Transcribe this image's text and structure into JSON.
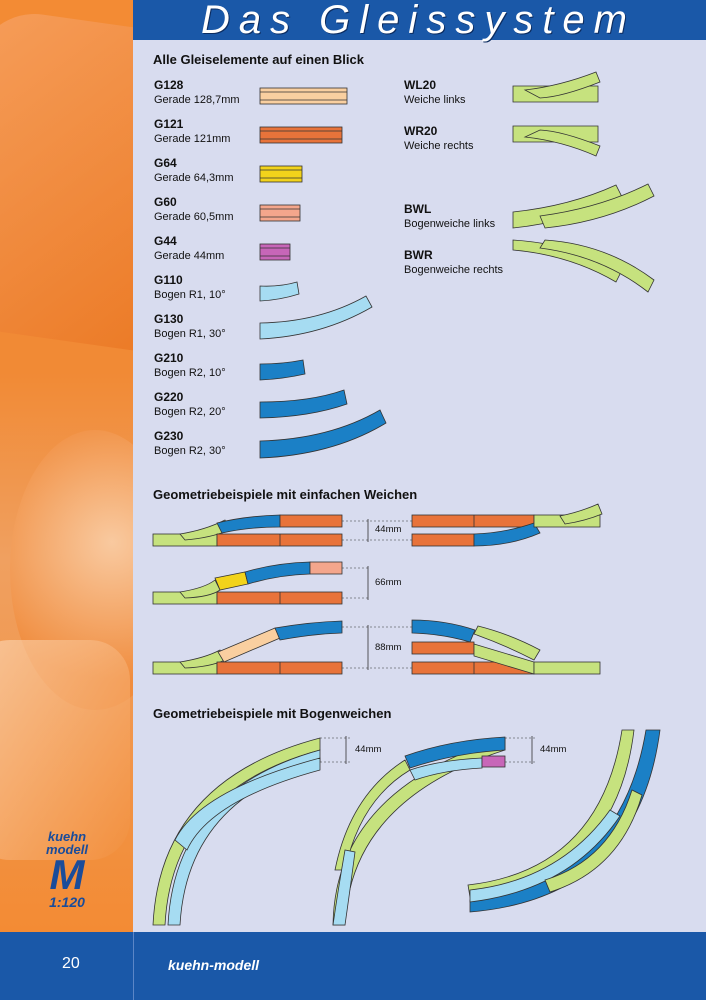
{
  "header": {
    "title": "Das Gleissystem"
  },
  "sections": {
    "overview": "Alle Gleiselemente auf einen Blick",
    "simple": "Geometriebeispiele mit einfachen Weichen",
    "curved": "Geometriebeispiele mit Bogenweichen"
  },
  "left_items": [
    {
      "code": "G128",
      "desc": "Gerade 128,7mm",
      "color": "#f9cfa0"
    },
    {
      "code": "G121",
      "desc": "Gerade 121mm",
      "color": "#e8733a"
    },
    {
      "code": "G64",
      "desc": "Gerade 64,3mm",
      "color": "#f2d31b"
    },
    {
      "code": "G60",
      "desc": "Gerade 60,5mm",
      "color": "#f4a68c"
    },
    {
      "code": "G44",
      "desc": "Gerade 44mm",
      "color": "#c766b8"
    },
    {
      "code": "G110",
      "desc": "Bogen R1, 10°",
      "color": "#a6dcf2"
    },
    {
      "code": "G130",
      "desc": "Bogen R1, 30°",
      "color": "#a6dcf2"
    },
    {
      "code": "G210",
      "desc": "Bogen R2, 10°",
      "color": "#1b80c6"
    },
    {
      "code": "G220",
      "desc": "Bogen R2, 20°",
      "color": "#1b80c6"
    },
    {
      "code": "G230",
      "desc": "Bogen R2, 30°",
      "color": "#1b80c6"
    }
  ],
  "right_items": [
    {
      "code": "WL20",
      "desc": "Weiche links"
    },
    {
      "code": "WR20",
      "desc": "Weiche rechts"
    },
    {
      "code": "BWL",
      "desc": "Bogenweiche links"
    },
    {
      "code": "BWR",
      "desc": "Bogenweiche rechts"
    }
  ],
  "switch_color": "#c6e27e",
  "dimensions": {
    "d1": "44mm",
    "d2": "66mm",
    "d3": "88mm",
    "d4": "44mm",
    "d5": "44mm"
  },
  "footer": {
    "page": "20",
    "brand": "kuehn-modell"
  },
  "logo": {
    "line1": "kuehn",
    "line2": "modell",
    "mark": "M",
    "scale": "1:120"
  }
}
